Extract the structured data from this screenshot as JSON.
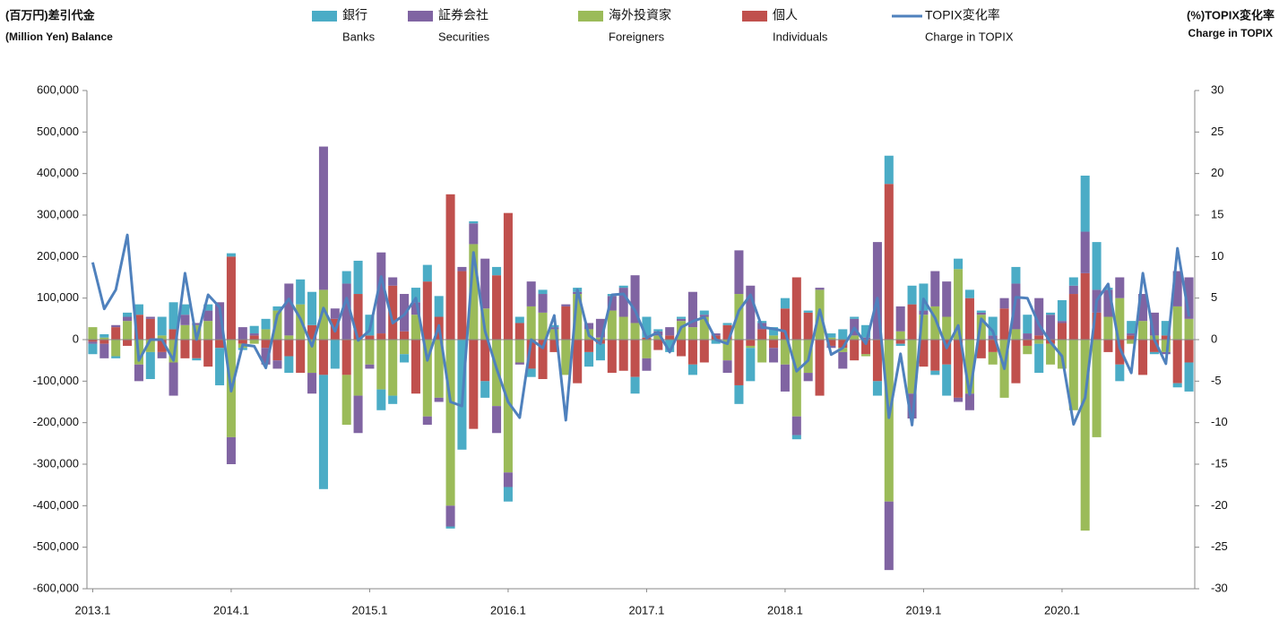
{
  "chart_data": {
    "type": "bar",
    "stacked": true,
    "title": "(百万円)差引代金",
    "subtitle": "(Million Yen) Balance",
    "y2_title": "(%)TOPIX変化率",
    "y2_subtitle": "Charge in TOPIX",
    "categories": [
      "2013.1",
      null,
      null,
      null,
      null,
      null,
      null,
      null,
      null,
      null,
      null,
      null,
      "2014.1",
      null,
      null,
      null,
      null,
      null,
      null,
      null,
      null,
      null,
      null,
      null,
      "2015.1",
      null,
      null,
      null,
      null,
      null,
      null,
      null,
      null,
      null,
      null,
      null,
      "2016.1",
      null,
      null,
      null,
      null,
      null,
      null,
      null,
      null,
      null,
      null,
      null,
      "2017.1",
      null,
      null,
      null,
      null,
      null,
      null,
      null,
      null,
      null,
      null,
      null,
      "2018.1",
      null,
      null,
      null,
      null,
      null,
      null,
      null,
      null,
      null,
      null,
      null,
      "2019.1",
      null,
      null,
      null,
      null,
      null,
      null,
      null,
      null,
      null,
      null,
      null,
      "2020.1",
      null,
      null,
      null,
      null,
      null,
      null,
      null,
      null,
      null,
      null,
      null
    ],
    "series": [
      {
        "name": "銀行",
        "name_en": "Banks",
        "color": "#4bacc6",
        "values": [
          -25000,
          8000,
          -5000,
          10000,
          25000,
          -65000,
          45000,
          65000,
          25000,
          -5000,
          15000,
          -90000,
          8000,
          -5000,
          18000,
          25000,
          10000,
          -40000,
          60000,
          80000,
          -275000,
          -70000,
          30000,
          80000,
          50000,
          -50000,
          -20000,
          -20000,
          35000,
          40000,
          50000,
          -5000,
          -265000,
          5000,
          -40000,
          20000,
          -35000,
          15000,
          -20000,
          10000,
          5000,
          0,
          10000,
          -35000,
          -40000,
          5000,
          5000,
          -40000,
          50000,
          5000,
          -30000,
          5000,
          -25000,
          10000,
          -10000,
          5000,
          -45000,
          -80000,
          5000,
          20000,
          25000,
          -10000,
          5000,
          0,
          10000,
          25000,
          5000,
          30000,
          -35000,
          68000,
          -5000,
          45000,
          65000,
          -10000,
          -75000,
          25000,
          20000,
          5000,
          45000,
          0,
          40000,
          45000,
          -70000,
          5000,
          50000,
          20000,
          135000,
          115000,
          5000,
          -40000,
          30000,
          0,
          -5000,
          35000,
          -10000,
          -70000
        ]
      },
      {
        "name": "証券会社",
        "name_en": "Securities",
        "color": "#8064a2",
        "values": [
          -5000,
          -35000,
          5000,
          10000,
          -40000,
          5000,
          -15000,
          -80000,
          25000,
          5000,
          25000,
          90000,
          -65000,
          30000,
          5000,
          -40000,
          -20000,
          125000,
          0,
          -50000,
          345000,
          25000,
          135000,
          -90000,
          -10000,
          195000,
          20000,
          90000,
          30000,
          -20000,
          -10000,
          -50000,
          10000,
          50000,
          120000,
          -65000,
          -35000,
          -5000,
          60000,
          45000,
          5000,
          5000,
          5000,
          15000,
          45000,
          35000,
          70000,
          115000,
          -30000,
          10000,
          20000,
          5000,
          85000,
          5000,
          5000,
          -30000,
          105000,
          130000,
          15000,
          -35000,
          -65000,
          -45000,
          -20000,
          5000,
          -5000,
          -40000,
          40000,
          5000,
          235000,
          -165000,
          60000,
          -60000,
          10000,
          85000,
          85000,
          -10000,
          -40000,
          5000,
          10000,
          25000,
          110000,
          15000,
          90000,
          60000,
          5000,
          20000,
          100000,
          55000,
          65000,
          50000,
          5000,
          65000,
          55000,
          -5000,
          85000,
          100000
        ]
      },
      {
        "name": "海外投資家",
        "name_en": "Foreigners",
        "color": "#9bbb59",
        "values": [
          30000,
          5000,
          -40000,
          45000,
          -60000,
          -30000,
          10000,
          -55000,
          35000,
          35000,
          45000,
          0,
          -235000,
          -10000,
          -10000,
          25000,
          70000,
          10000,
          85000,
          -80000,
          120000,
          0,
          -120000,
          -135000,
          -60000,
          -120000,
          -135000,
          -35000,
          60000,
          -185000,
          -140000,
          -400000,
          0,
          230000,
          75000,
          -160000,
          -320000,
          -55000,
          80000,
          65000,
          25000,
          -85000,
          110000,
          25000,
          5000,
          70000,
          55000,
          40000,
          -45000,
          10000,
          0,
          45000,
          30000,
          55000,
          0,
          -50000,
          110000,
          -5000,
          -55000,
          10000,
          -60000,
          -185000,
          -80000,
          120000,
          5000,
          -10000,
          10000,
          -5000,
          0,
          -390000,
          20000,
          -130000,
          60000,
          80000,
          55000,
          170000,
          -130000,
          60000,
          -30000,
          -140000,
          25000,
          -20000,
          -10000,
          -50000,
          -70000,
          -170000,
          -460000,
          -235000,
          55000,
          100000,
          -10000,
          45000,
          10000,
          -30000,
          80000,
          50000
        ]
      },
      {
        "name": "個人",
        "name_en": "Individuals",
        "color": "#c0504d",
        "values": [
          -5000,
          -10000,
          30000,
          -15000,
          60000,
          50000,
          -30000,
          25000,
          -45000,
          -45000,
          -65000,
          -20000,
          200000,
          -10000,
          10000,
          -20000,
          -50000,
          -40000,
          -80000,
          35000,
          -85000,
          50000,
          -85000,
          110000,
          10000,
          15000,
          130000,
          20000,
          -130000,
          140000,
          55000,
          350000,
          165000,
          -215000,
          -100000,
          155000,
          305000,
          40000,
          -70000,
          -95000,
          -30000,
          80000,
          -105000,
          -30000,
          -10000,
          -80000,
          -75000,
          -90000,
          5000,
          -25000,
          10000,
          -40000,
          -60000,
          -55000,
          10000,
          35000,
          -110000,
          -15000,
          25000,
          -20000,
          75000,
          150000,
          65000,
          -135000,
          -15000,
          -20000,
          -50000,
          -35000,
          -100000,
          375000,
          -10000,
          85000,
          -65000,
          -75000,
          -60000,
          -140000,
          100000,
          -45000,
          -30000,
          75000,
          -105000,
          -15000,
          10000,
          -10000,
          40000,
          110000,
          160000,
          65000,
          -30000,
          -60000,
          10000,
          -85000,
          -30000,
          10000,
          -105000,
          -55000
        ]
      },
      {
        "name": "TOPIX変化率",
        "name_en": "Charge in TOPIX",
        "type": "line",
        "axis": "y2",
        "color": "#4f81bd",
        "values": [
          9.3,
          3.7,
          6,
          12.6,
          -2.5,
          0,
          0,
          -2.5,
          8,
          0,
          5.4,
          3.9,
          -6.2,
          -0.6,
          -0.8,
          -3.4,
          3,
          4.9,
          2.5,
          -0.8,
          3.8,
          1,
          5,
          -0.1,
          1.1,
          7.6,
          2,
          3,
          5,
          -2.5,
          1.7,
          -7.5,
          -8,
          10.5,
          1,
          -3.5,
          -7.5,
          -9.4,
          0,
          -1,
          2.9,
          -9.7,
          6,
          0.5,
          -0.5,
          5.4,
          5.5,
          3.5,
          0.2,
          0.9,
          -1.5,
          1.5,
          2.2,
          2.7,
          0,
          -0.5,
          3.5,
          5.4,
          1.5,
          1.3,
          1,
          -3.8,
          -2.5,
          3.6,
          -1.8,
          -1,
          1.4,
          -0.5,
          5,
          -9.4,
          -1.7,
          -10.3,
          4.9,
          2.6,
          -1,
          1.7,
          -6.6,
          2.5,
          1,
          -3.5,
          5.1,
          5,
          1.8,
          -0.3,
          -2,
          -10.2,
          -7,
          4.7,
          6.7,
          -1,
          -4,
          8,
          0,
          -2.9,
          11,
          2.8
        ]
      }
    ],
    "ylim": [
      -600000,
      600000
    ],
    "yticks": [
      {
        "value": -600000,
        "label": "-600,000"
      },
      {
        "value": -500000,
        "label": "-500,000"
      },
      {
        "value": -400000,
        "label": "-400,000"
      },
      {
        "value": -300000,
        "label": "-300,000"
      },
      {
        "value": -200000,
        "label": "-200,000"
      },
      {
        "value": -100000,
        "label": "-100,000"
      },
      0,
      {
        "value": 100000,
        "label": "100,000"
      },
      {
        "value": 200000,
        "label": "200,000"
      },
      {
        "value": 300000,
        "label": "300,000"
      },
      {
        "value": 400000,
        "label": "400,000"
      },
      {
        "value": 500000,
        "label": "500,000"
      },
      {
        "value": 600000,
        "label": "600,000"
      }
    ],
    "y2lim": [
      -30,
      30
    ],
    "y2ticks": [
      -30,
      -25,
      -20,
      -15,
      -10,
      -5,
      0,
      5,
      10,
      15,
      20,
      25,
      30
    ],
    "negative_tick_color": "#e02020",
    "grid": false
  }
}
